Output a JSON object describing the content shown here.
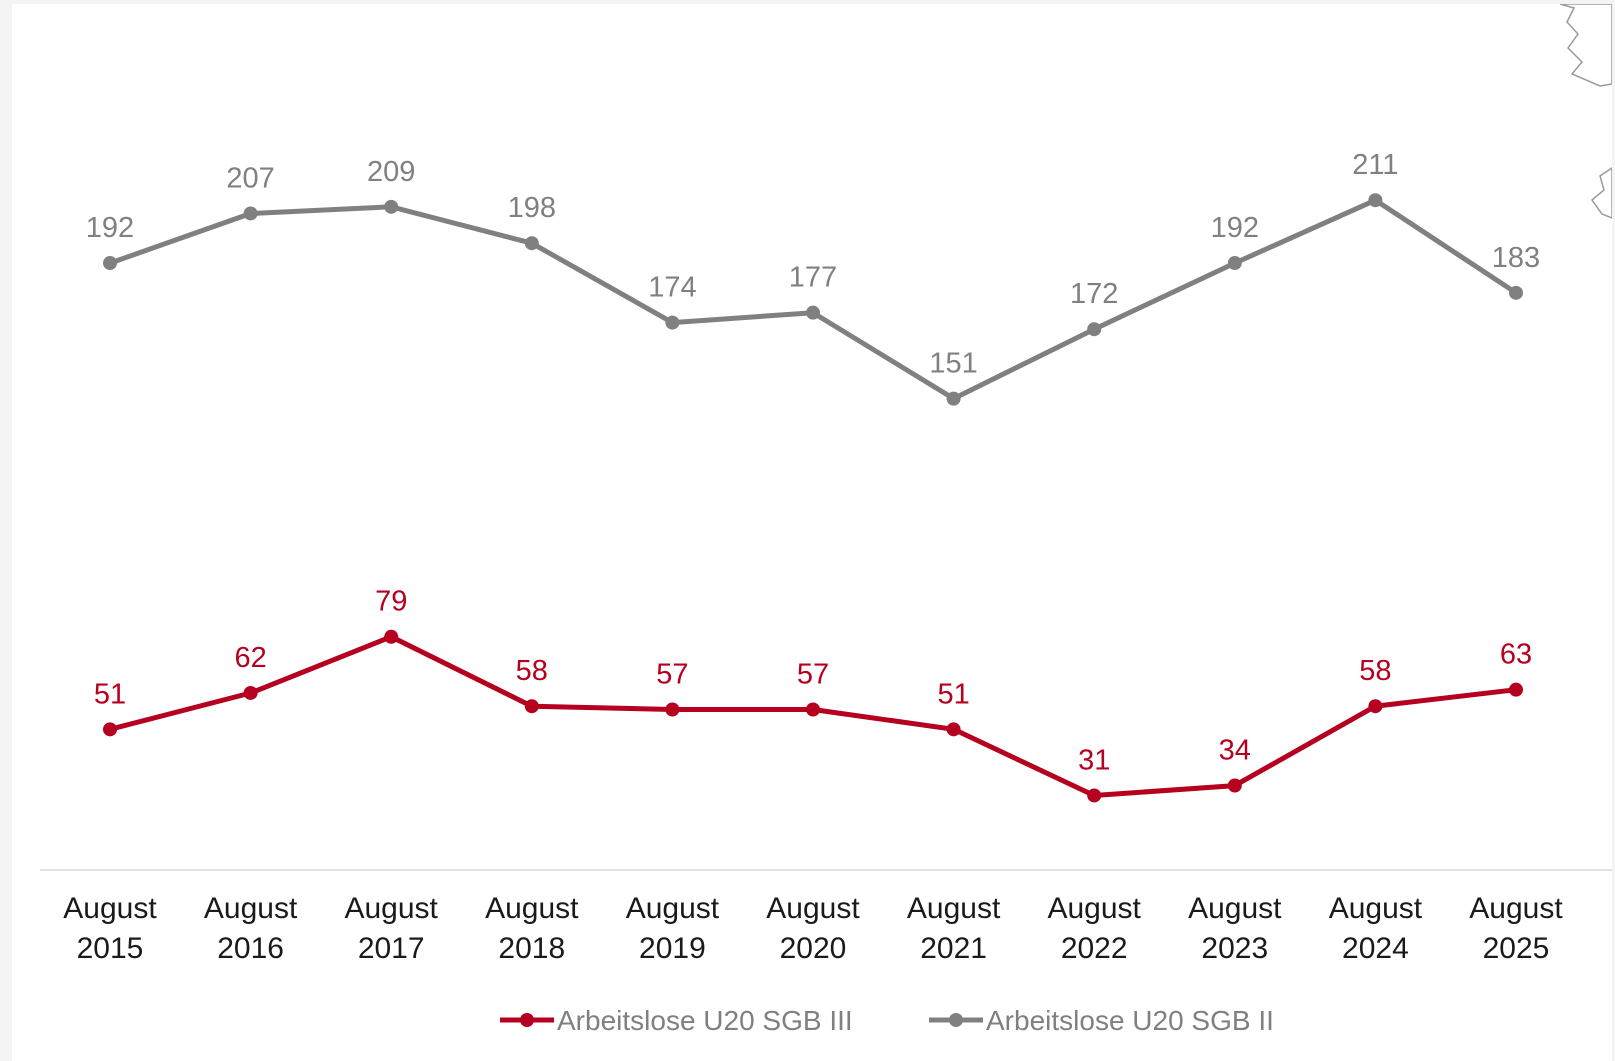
{
  "chart_data": {
    "type": "line",
    "x": [
      [
        "August",
        "2015"
      ],
      [
        "August",
        "2016"
      ],
      [
        "August",
        "2017"
      ],
      [
        "August",
        "2018"
      ],
      [
        "August",
        "2019"
      ],
      [
        "August",
        "2020"
      ],
      [
        "August",
        "2021"
      ],
      [
        "August",
        "2022"
      ],
      [
        "August",
        "2023"
      ],
      [
        "August",
        "2024"
      ],
      [
        "August",
        "2025"
      ]
    ],
    "series": [
      {
        "name": "Arbeitslose U20 SGB III",
        "color": "#b5001f",
        "values": [
          51,
          62,
          79,
          58,
          57,
          57,
          51,
          31,
          34,
          58,
          63
        ]
      },
      {
        "name": "Arbeitslose U20 SGB II",
        "color": "#808080",
        "values": [
          192,
          207,
          209,
          198,
          174,
          177,
          151,
          172,
          192,
          211,
          183
        ]
      }
    ],
    "title": "",
    "xlabel": "",
    "ylabel": "",
    "ylim": [
      0,
      230
    ],
    "grid": false,
    "data_labels": true,
    "legend_position": "bottom-center"
  }
}
